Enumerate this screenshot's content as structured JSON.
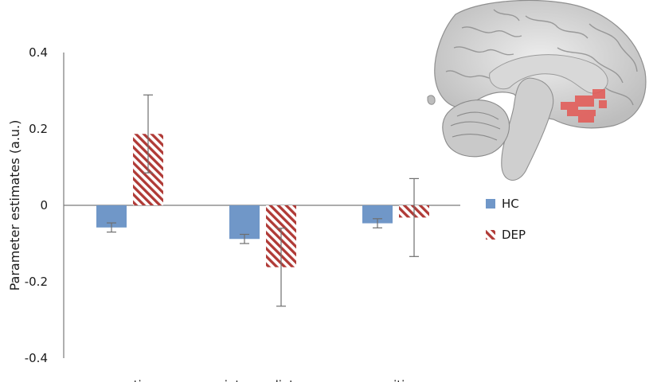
{
  "chart_data": {
    "type": "bar",
    "categories": [
      "negative",
      "intermediate",
      "positive"
    ],
    "series": [
      {
        "name": "HC",
        "color": "#7097c8",
        "pattern": "solid",
        "values": [
          -0.058,
          -0.088,
          -0.047
        ],
        "err": [
          0.012,
          0.012,
          0.012
        ]
      },
      {
        "name": "DEP",
        "color": "#b03a36",
        "pattern": "hatched",
        "values": [
          0.187,
          -0.162,
          -0.032
        ],
        "err": [
          0.102,
          0.102,
          0.102
        ]
      }
    ],
    "title": "",
    "xlabel": "",
    "ylabel": "Parameter estimates (a.u.)",
    "ylim": [
      -0.4,
      0.4
    ],
    "yticks": [
      -0.4,
      -0.2,
      0,
      0.2,
      0.4
    ],
    "ytick_labels": [
      "-0.4",
      "-0.2",
      "0",
      "0.2",
      "0.4"
    ],
    "grid": false,
    "legend_position": "right",
    "inset": "sagittal brain slice with highlighted region"
  }
}
